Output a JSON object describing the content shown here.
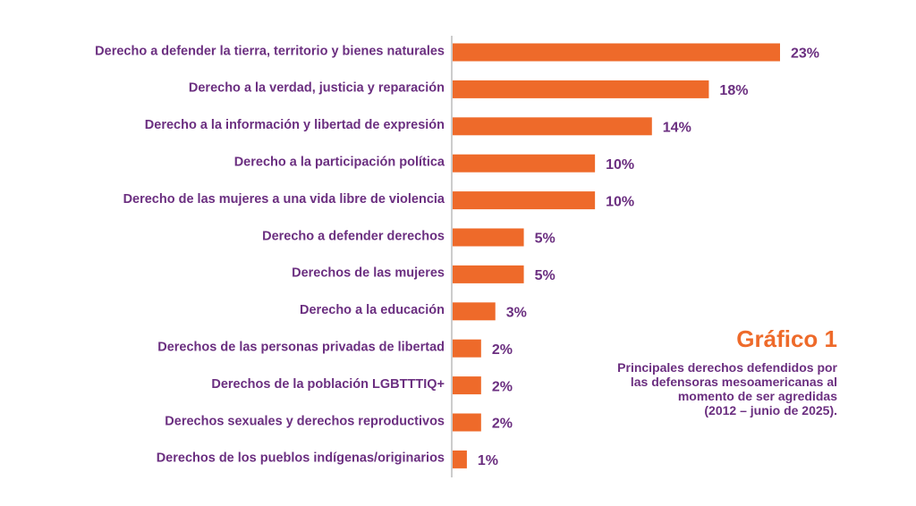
{
  "colors": {
    "bar": "#ee6a2a",
    "text": "#6b2f80",
    "accent": "#ee6a2a",
    "axis": "#9a9a9a"
  },
  "caption": {
    "title": "Gráfico 1",
    "lines": [
      "Principales derechos defendidos por",
      "las defensoras mesoamericanas al",
      "momento de ser agredidas",
      "(2012 – junio de 2025)."
    ]
  },
  "chart_data": {
    "type": "bar",
    "orientation": "horizontal",
    "title": "",
    "xlabel": "",
    "ylabel": "",
    "grid": false,
    "legend": "none",
    "xlim": [
      0,
      25
    ],
    "categories": [
      "Derecho a defender la tierra, territorio y bienes naturales",
      "Derecho a la verdad, justicia y reparación",
      "Derecho a la información y libertad de expresión",
      "Derecho a la participación política",
      "Derecho de las mujeres a una vida libre de violencia",
      "Derecho a defender derechos",
      "Derechos de las mujeres",
      "Derecho a la educación",
      "Derechos de las personas privadas de libertad",
      "Derechos de la población LGBTTTIQ+",
      "Derechos sexuales y derechos reproductivos",
      "Derechos de los pueblos indígenas/originarios"
    ],
    "values": [
      23,
      18,
      14,
      10,
      10,
      5,
      5,
      3,
      2,
      2,
      2,
      1
    ],
    "value_labels": [
      "23%",
      "18%",
      "14%",
      "10%",
      "10%",
      "5%",
      "5%",
      "3%",
      "2%",
      "2%",
      "2%",
      "1%"
    ]
  }
}
